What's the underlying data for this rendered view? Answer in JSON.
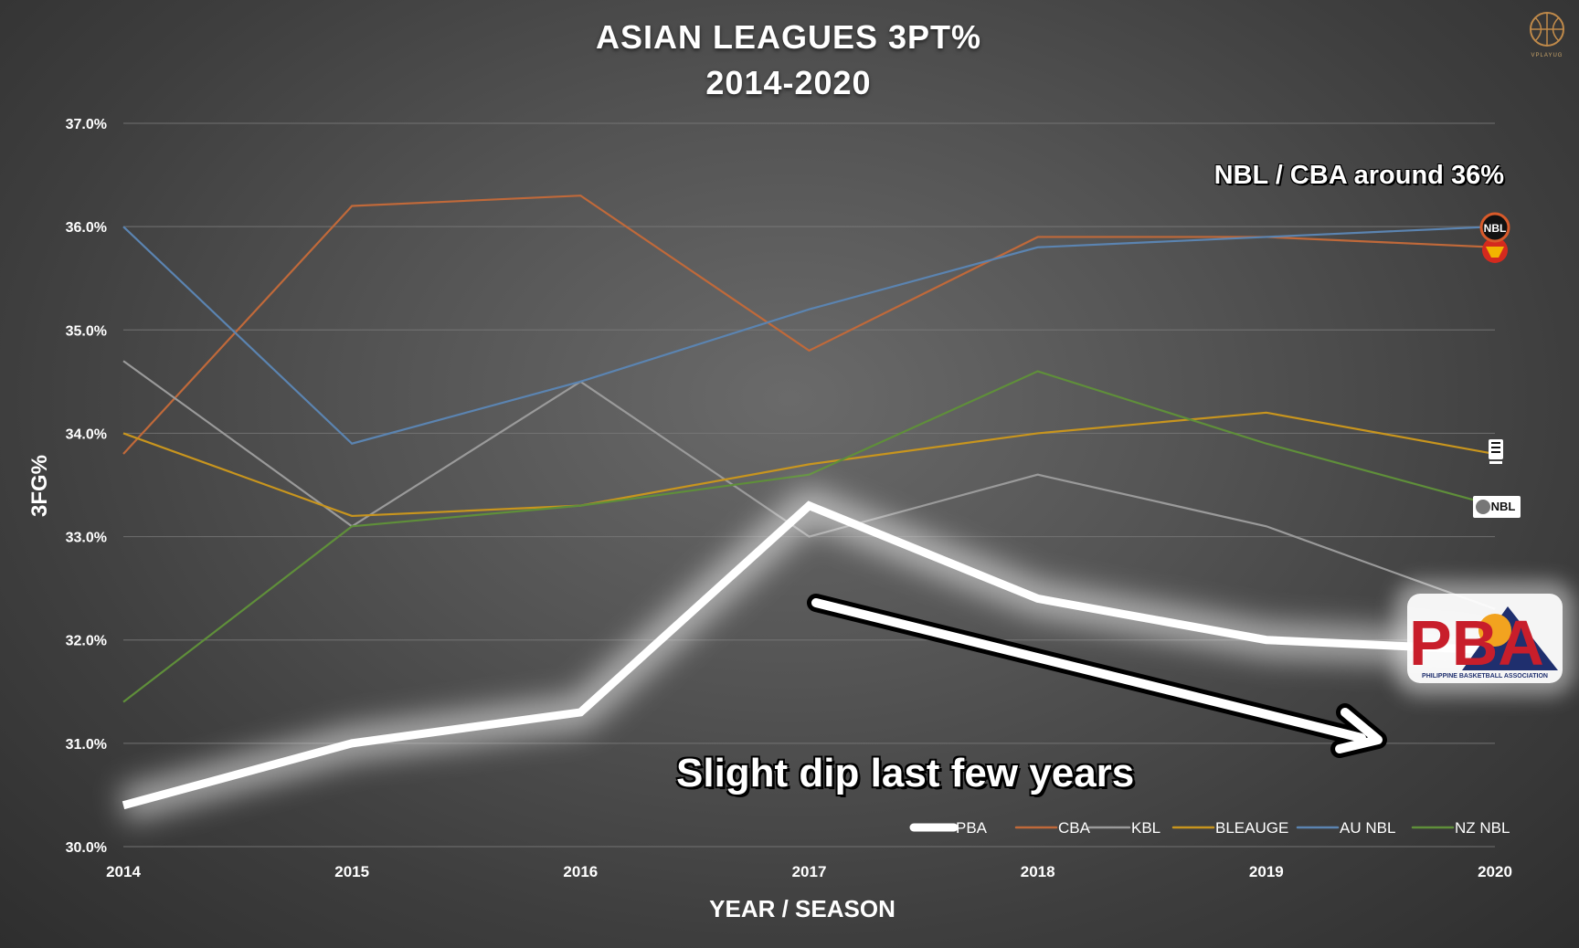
{
  "header": {
    "title": "ASIAN LEAGUES 3PT%",
    "subtitle": "2014-2020",
    "brand_text": "VPLAYUG"
  },
  "annotations": {
    "top_right": "NBL / CBA around 36%",
    "bottom": "Slight dip last few years"
  },
  "logos": {
    "nbl_badge": "NBL",
    "nz_badge": "NBL",
    "pba_letters": "PBA",
    "pba_caption": "PHILIPPINE BASKETBALL ASSOCIATION"
  },
  "colors": {
    "PBA": "#ffffff",
    "CBA": "#c0693a",
    "KBL": "#9a9a9a",
    "BLEAUGE": "#c8951e",
    "AU NBL": "#5b84b1",
    "NZ NBL": "#5f8f3a"
  },
  "chart_data": {
    "type": "line",
    "title": "ASIAN LEAGUES 3PT% 2014-2020",
    "xlabel": "YEAR / SEASON",
    "ylabel": "3FG%",
    "categories": [
      "2014",
      "2015",
      "2016",
      "2017",
      "2018",
      "2019",
      "2020"
    ],
    "ylim": [
      30.0,
      37.0
    ],
    "yticks": [
      "30.0%",
      "31.0%",
      "32.0%",
      "33.0%",
      "34.0%",
      "35.0%",
      "36.0%",
      "37.0%"
    ],
    "grid": true,
    "legend_position": "bottom-right",
    "series": [
      {
        "name": "PBA",
        "values": [
          30.4,
          31.0,
          31.3,
          33.3,
          32.4,
          32.0,
          31.9
        ]
      },
      {
        "name": "CBA",
        "values": [
          33.8,
          36.2,
          36.3,
          34.8,
          35.9,
          35.9,
          35.8
        ]
      },
      {
        "name": "KBL",
        "values": [
          34.7,
          33.1,
          34.5,
          33.0,
          33.6,
          33.1,
          32.3
        ]
      },
      {
        "name": "BLEAUGE",
        "values": [
          34.0,
          33.2,
          33.3,
          33.7,
          34.0,
          34.2,
          33.8
        ]
      },
      {
        "name": "AU NBL",
        "values": [
          36.0,
          33.9,
          34.5,
          35.2,
          35.8,
          35.9,
          36.0
        ]
      },
      {
        "name": "NZ NBL",
        "values": [
          31.4,
          33.1,
          33.3,
          33.6,
          34.6,
          33.9,
          33.3
        ]
      }
    ]
  }
}
